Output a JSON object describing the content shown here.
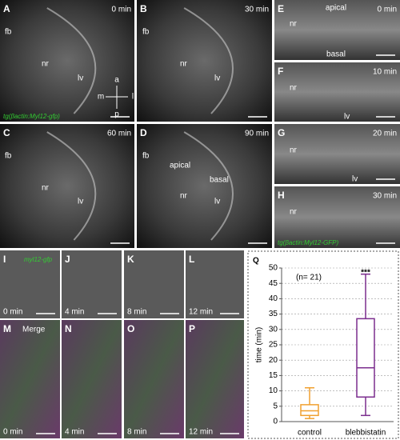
{
  "panels": [
    {
      "letter": "A",
      "time": "0 min",
      "labels": [
        "fb",
        "nr",
        "lv",
        "a",
        "p",
        "m",
        "l"
      ],
      "genotype": "tg(βactin:Myl12-gfp)"
    },
    {
      "letter": "B",
      "time": "30 min",
      "labels": [
        "fb",
        "nr",
        "lv"
      ]
    },
    {
      "letter": "C",
      "time": "60 min",
      "labels": [
        "fb",
        "nr",
        "lv"
      ]
    },
    {
      "letter": "D",
      "time": "90 min",
      "labels": [
        "fb",
        "apical",
        "basal",
        "nr",
        "lv"
      ]
    },
    {
      "letter": "E",
      "time": "0 min",
      "labels": [
        "apical",
        "nr",
        "basal"
      ]
    },
    {
      "letter": "F",
      "time": "10 min",
      "labels": [
        "nr",
        "lv"
      ]
    },
    {
      "letter": "G",
      "time": "20 min",
      "labels": [
        "nr",
        "lv"
      ]
    },
    {
      "letter": "H",
      "time": "30 min",
      "labels": [
        "nr"
      ],
      "genotype": "tg(βactin:Myl12-GFP)"
    },
    {
      "letter": "I",
      "time": "0 min",
      "labels": [
        "myl12-gfp"
      ]
    },
    {
      "letter": "J",
      "time": "4 min",
      "labels": []
    },
    {
      "letter": "K",
      "time": "8 min",
      "labels": []
    },
    {
      "letter": "L",
      "time": "12 min",
      "labels": []
    },
    {
      "letter": "M",
      "time": "0 min",
      "labels": [
        "Merge"
      ]
    },
    {
      "letter": "N",
      "time": "4 min",
      "labels": []
    },
    {
      "letter": "O",
      "time": "8 min",
      "labels": []
    },
    {
      "letter": "P",
      "time": "12 min",
      "labels": []
    }
  ],
  "chart_data": {
    "type": "box",
    "letter": "Q",
    "ylabel": "time (min)",
    "categories": [
      "control",
      "blebbistatin"
    ],
    "series": [
      {
        "name": "control",
        "color": "#f0a030",
        "min": 1,
        "q1": 2,
        "median": 3.5,
        "q3": 5.5,
        "max": 11
      },
      {
        "name": "blebbistatin",
        "color": "#7b2d8e",
        "min": 2,
        "q1": 8,
        "median": 17.5,
        "q3": 33.5,
        "max": 48
      }
    ],
    "annotations": [
      "(n= 21)",
      "***"
    ],
    "ylim": [
      0,
      50
    ],
    "yticks": [
      0,
      5,
      10,
      15,
      20,
      25,
      30,
      35,
      40,
      45,
      50
    ],
    "grid": true
  }
}
